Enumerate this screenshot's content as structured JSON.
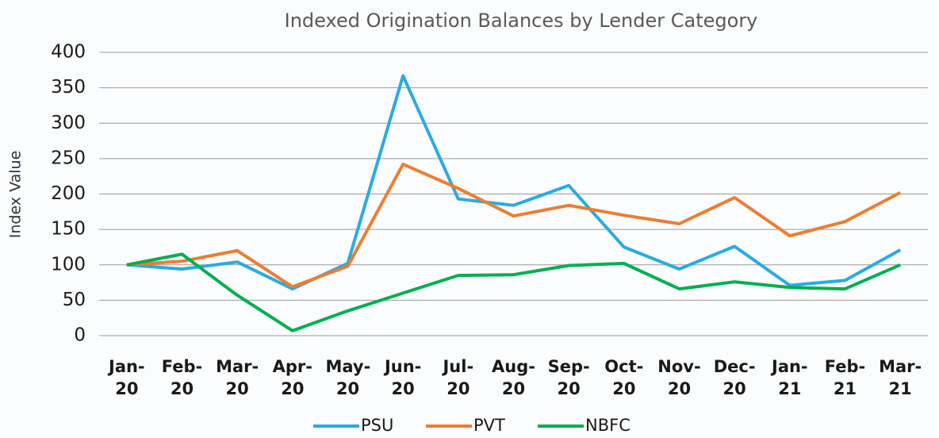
{
  "chart_data": {
    "type": "line",
    "title": "Indexed Origination Balances by Lender Category",
    "y_label": "Index Value",
    "categories": [
      "Jan-20",
      "Feb-20",
      "Mar-20",
      "Apr-20",
      "May-20",
      "Jun-20",
      "Jul-20",
      "Aug-20",
      "Sep-20",
      "Oct-20",
      "Nov-20",
      "Dec-20",
      "Jan-21",
      "Feb-21",
      "Mar-21"
    ],
    "series": [
      {
        "name": "PSU",
        "color": "#29abe2",
        "values": [
          100,
          94,
          104,
          66,
          102,
          367,
          193,
          184,
          212,
          125,
          94,
          126,
          71,
          78,
          121
        ]
      },
      {
        "name": "PVT",
        "color": "#ed7d31",
        "values": [
          100,
          105,
          120,
          69,
          98,
          242,
          208,
          169,
          184,
          170,
          158,
          195,
          141,
          161,
          202
        ]
      },
      {
        "name": "NBFC",
        "color": "#00b050",
        "values": [
          100,
          115,
          57,
          7,
          35,
          60,
          85,
          86,
          99,
          102,
          66,
          76,
          68,
          66,
          100
        ]
      }
    ],
    "ylim": [
      0,
      400
    ],
    "yticks": [
      0,
      50,
      100,
      150,
      200,
      250,
      300,
      350,
      400
    ],
    "grid": true,
    "legend": "bottom"
  }
}
